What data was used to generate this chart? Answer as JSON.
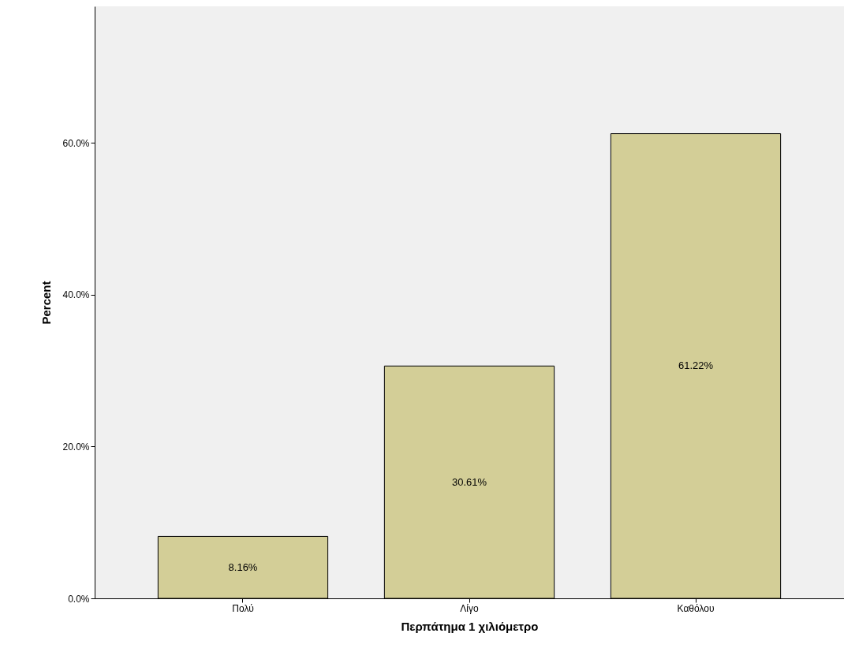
{
  "chart_data": {
    "type": "bar",
    "xlabel": "Περπάτημα 1 χιλιόμετρο",
    "ylabel": "Percent",
    "categories": [
      "Πολύ",
      "Λίγο",
      "Καθόλου"
    ],
    "values": [
      8.16,
      30.61,
      61.22
    ],
    "value_labels": [
      "8.16%",
      "30.61%",
      "61.22%"
    ],
    "color": "#d3ce97",
    "ylim": [
      0,
      78
    ],
    "yticks": [
      {
        "value": 0,
        "label": "0.0%"
      },
      {
        "value": 20,
        "label": "20.0%"
      },
      {
        "value": 40,
        "label": "40.0%"
      },
      {
        "value": 60,
        "label": "60.0%"
      }
    ],
    "grid": false
  }
}
